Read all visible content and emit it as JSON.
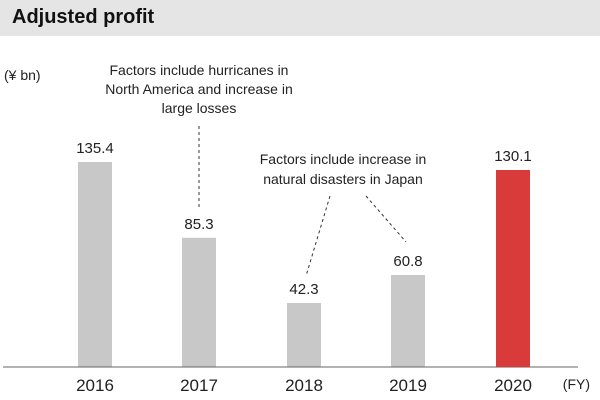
{
  "chart_data": {
    "type": "bar",
    "title": "Adjusted profit",
    "ylabel": "(¥ bn)",
    "xlabel": "(FY)",
    "categories": [
      "2016",
      "2017",
      "2018",
      "2019",
      "2020"
    ],
    "values": [
      135.4,
      85.3,
      42.3,
      60.8,
      130.1
    ],
    "value_labels": [
      "135.4",
      "85.3",
      "42.3",
      "60.8",
      "130.1"
    ],
    "ylim": [
      0,
      140
    ],
    "grid": false,
    "legend": "none",
    "colors": {
      "bar": "#c8c8c8",
      "highlight": "#d93a3a",
      "highlight_category": "2020",
      "axis": "#666666"
    },
    "annotations": [
      {
        "lines": [
          "Factors include hurricanes in",
          "North America and increase in",
          "large losses"
        ],
        "targets": [
          "2017"
        ]
      },
      {
        "lines": [
          "Factors include increase in",
          "natural disasters in Japan"
        ],
        "targets": [
          "2018",
          "2019"
        ]
      }
    ]
  }
}
